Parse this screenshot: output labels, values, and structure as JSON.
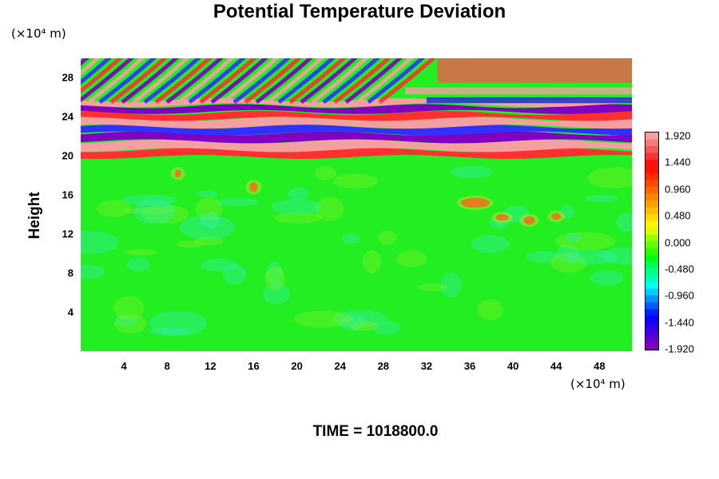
{
  "chart_data": {
    "type": "heatmap",
    "title": "Potential Temperature Deviation",
    "ylabel": "Height",
    "y_unit": "(×10⁴ m)",
    "x_unit": "(×10⁴ m)",
    "xticks": [
      4,
      8,
      12,
      16,
      20,
      24,
      28,
      32,
      36,
      40,
      44,
      48
    ],
    "yticks": [
      4,
      8,
      12,
      16,
      20,
      24,
      28
    ],
    "xlim": [
      0,
      51
    ],
    "ylim": [
      0,
      30
    ],
    "colorbar": {
      "ticks": [
        "1.920",
        "1.440",
        "0.960",
        "0.480",
        "0.000",
        "-0.480",
        "-0.960",
        "-1.440",
        "-1.920"
      ],
      "range": [
        -1.92,
        1.92
      ],
      "colors": [
        "#f4a0a0",
        "#ff0000",
        "#ff8000",
        "#ffff00",
        "#00ff00",
        "#00ffff",
        "#0000ff",
        "#8000c0"
      ]
    },
    "footer": "TIME = 1018800.0"
  }
}
